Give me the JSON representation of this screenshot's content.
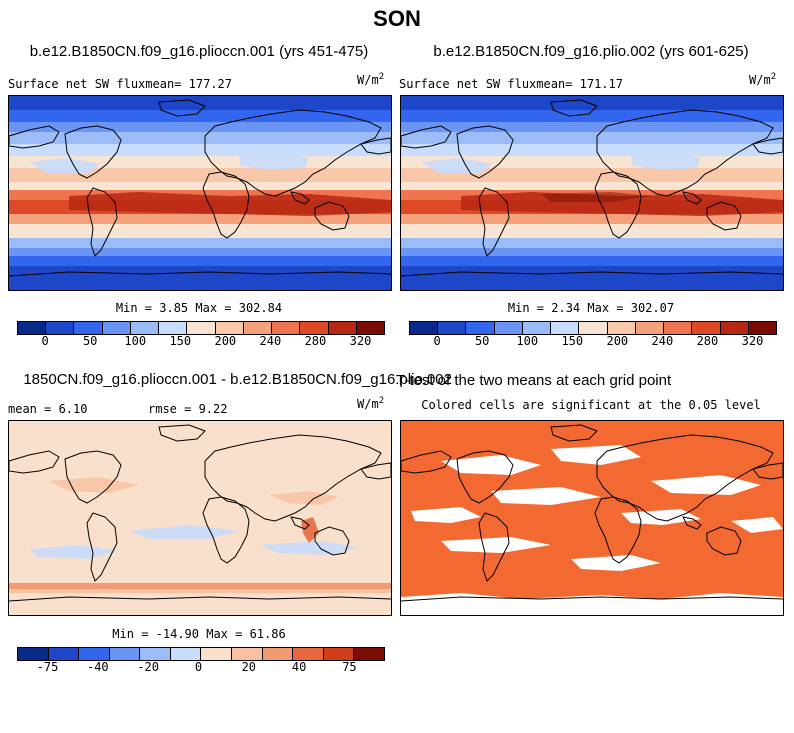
{
  "season": "SON",
  "colors": {
    "levels_abs": [
      "#0a2a8a",
      "#1e46c8",
      "#3366ee",
      "#6a95f5",
      "#9cbcf8",
      "#c8dcfb",
      "#f7e4d2",
      "#f9c8aa",
      "#f5a27c",
      "#ee7550",
      "#de4a26",
      "#b72712",
      "#7a0d04"
    ],
    "levels_diff": [
      "#0a2a8a",
      "#1e46c8",
      "#3366ee",
      "#6a95f5",
      "#9cbcf8",
      "#c8dcfb",
      "#f9e0cc",
      "#f7c0a0",
      "#f29a72",
      "#e8683e",
      "#d23d1a",
      "#7a0d04"
    ],
    "significant": "#f26a32"
  },
  "panels": {
    "top_left": {
      "title": "b.e12.B1850CN.f09_g16.plioccn.001 (yrs 451-475)",
      "subtitle": "Surface net SW flux",
      "mean_label": "mean= 177.27",
      "units": "W/m",
      "units_exp": "2",
      "minmax": "Min =   3.85 Max = 302.84",
      "ticks": [
        "0",
        "50",
        "100",
        "150",
        "200",
        "240",
        "280",
        "320"
      ]
    },
    "top_right": {
      "title": "b.e12.B1850CN.f09_g16.plio.002 (yrs 601-625)",
      "subtitle": "Surface net SW flux",
      "mean_label": "mean= 171.17",
      "units": "W/m",
      "units_exp": "2",
      "minmax": "Min =   2.34 Max = 302.07",
      "ticks": [
        "0",
        "50",
        "100",
        "150",
        "200",
        "240",
        "280",
        "320"
      ]
    },
    "bottom_left": {
      "title": "1850CN.f09_g16.plioccn.001 - b.e12.B1850CN.f09_g16.plio.002",
      "mean_label": "mean =   6.10",
      "rmse_label": "rmse =   9.22",
      "units": "W/m",
      "units_exp": "2",
      "minmax": "Min = -14.90 Max =  61.86",
      "ticks": [
        "-75",
        "-40",
        "-20",
        "0",
        "20",
        "40",
        "75"
      ]
    },
    "bottom_right": {
      "title": "T-test of the two means at each grid point",
      "subtitle": "Colored cells are significant at the 0.05 level"
    }
  }
}
